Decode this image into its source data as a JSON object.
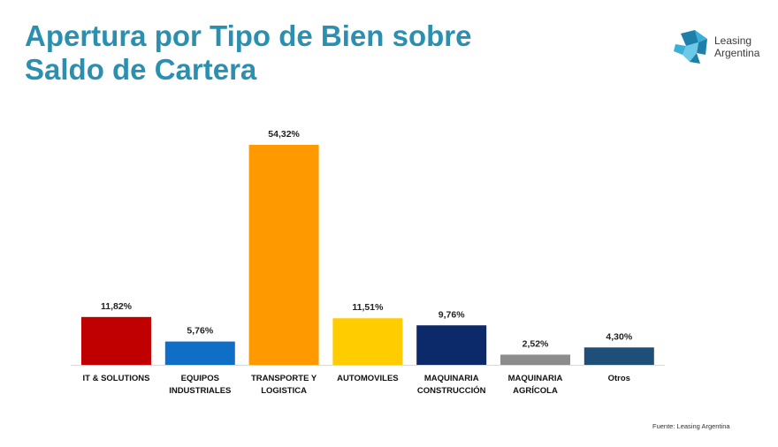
{
  "header": {
    "title_line1": "Apertura por Tipo de Bien sobre",
    "title_line2": "Saldo de Cartera"
  },
  "logo": {
    "line1": "Leasing",
    "line2": "Argentina",
    "icon": "star-polygon-logo-icon",
    "colors": [
      "#1e7fa8",
      "#3ab0d8",
      "#6cc9e8"
    ]
  },
  "source": "Fuente: Leasing Argentina",
  "chart_data": {
    "type": "bar",
    "categories": [
      [
        "IT & SOLUTIONS"
      ],
      [
        "EQUIPOS",
        "INDUSTRIALES"
      ],
      [
        "TRANSPORTE Y",
        "LOGISTICA"
      ],
      [
        "AUTOMOVILES"
      ],
      [
        "MAQUINARIA",
        "CONSTRUCCIÓN"
      ],
      [
        "MAQUINARIA",
        "AGRÍCOLA"
      ],
      [
        "Otros"
      ]
    ],
    "values": [
      11.82,
      5.76,
      54.32,
      11.51,
      9.76,
      2.52,
      4.3
    ],
    "value_labels": [
      "11,82%",
      "5,76%",
      "54,32%",
      "11,51%",
      "9,76%",
      "2,52%",
      "4,30%"
    ],
    "colors": [
      "#c00000",
      "#0f6fc6",
      "#ff9900",
      "#ffcc00",
      "#0c2a6a",
      "#8c8c8c",
      "#1f4e79"
    ],
    "ylim": [
      0,
      54.32
    ],
    "grid": false,
    "legend": "none"
  }
}
